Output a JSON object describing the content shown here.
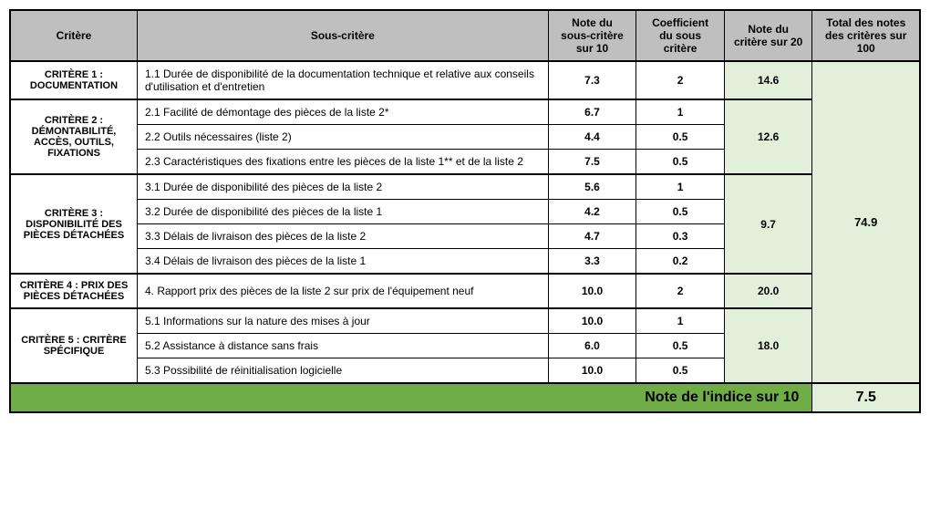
{
  "headers": {
    "critere": "Critère",
    "sous": "Sous-critère",
    "note10": "Note du sous-critère sur 10",
    "coef": "Coefficient du sous critère",
    "note20": "Note du critère sur 20",
    "total": "Total des notes des critères sur 100"
  },
  "criteres": {
    "c1": {
      "label": "CRITÈRE 1 : DOCUMENTATION",
      "note20": "14.6"
    },
    "c2": {
      "label": "CRITÈRE 2 : DÉMONTABILITÉ, ACCÈS, OUTILS, FIXATIONS",
      "note20": "12.6"
    },
    "c3": {
      "label": "CRITÈRE 3 : DISPONIBILITÉ DES PIÈCES DÉTACHÉES",
      "note20": "9.7"
    },
    "c4": {
      "label": "CRITÈRE 4 : PRIX DES PIÈCES DÉTACHÉES",
      "note20": "20.0"
    },
    "c5": {
      "label": "CRITÈRE 5 : CRITÈRE SPÉCIFIQUE",
      "note20": "18.0"
    }
  },
  "rows": {
    "r11": {
      "sous": "1.1 Durée de disponibilité de la documentation technique et relative aux conseils d'utilisation et d'entretien",
      "note10": "7.3",
      "coef": "2"
    },
    "r21": {
      "sous": "2.1 Facilité de démontage des pièces de la liste 2*",
      "note10": "6.7",
      "coef": "1"
    },
    "r22": {
      "sous": "2.2 Outils nécessaires (liste 2)",
      "note10": "4.4",
      "coef": "0.5"
    },
    "r23": {
      "sous": "2.3 Caractéristiques des fixations entre les pièces de la liste 1** et de la liste 2",
      "note10": "7.5",
      "coef": "0.5"
    },
    "r31": {
      "sous": "3.1 Durée de disponibilité des pièces de la liste 2",
      "note10": "5.6",
      "coef": "1"
    },
    "r32": {
      "sous": "3.2 Durée de disponibilité des pièces de la liste 1",
      "note10": "4.2",
      "coef": "0.5"
    },
    "r33": {
      "sous": "3.3 Délais de livraison des pièces de la liste 2",
      "note10": "4.7",
      "coef": "0.3"
    },
    "r34": {
      "sous": "3.4 Délais de livraison des pièces de la liste 1",
      "note10": "3.3",
      "coef": "0.2"
    },
    "r41": {
      "sous": "4. Rapport prix des pièces de la liste 2 sur prix de l'équipement neuf",
      "note10": "10.0",
      "coef": "2"
    },
    "r51": {
      "sous": "5.1 Informations sur la nature des mises à jour",
      "note10": "10.0",
      "coef": "1"
    },
    "r52": {
      "sous": "5.2 Assistance à distance sans frais",
      "note10": "6.0",
      "coef": "0.5"
    },
    "r53": {
      "sous": "5.3 Possibilité de réinitialisation logicielle",
      "note10": "10.0",
      "coef": "0.5"
    }
  },
  "total100": "74.9",
  "footer": {
    "label": "Note de l'indice sur 10",
    "value": "7.5"
  }
}
